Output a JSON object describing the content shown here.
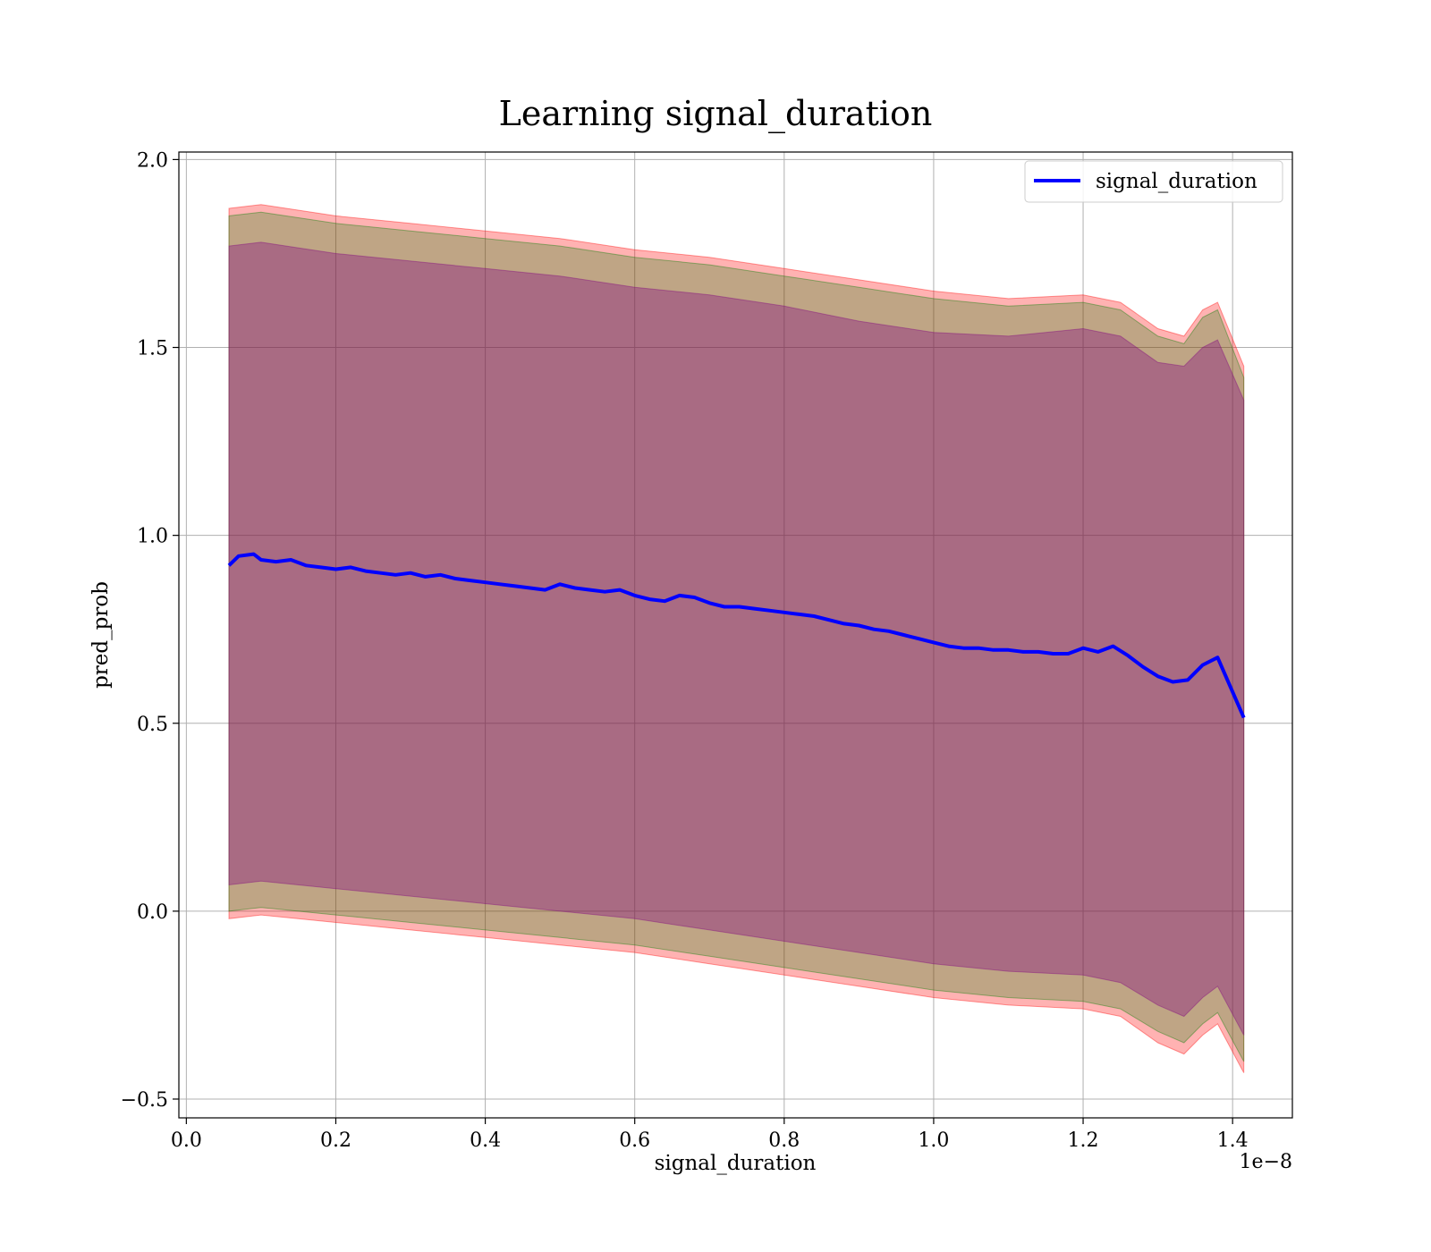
{
  "chart_data": {
    "type": "line",
    "title": "Learning signal_duration",
    "xlabel": "signal_duration",
    "ylabel": "pred_prob",
    "x_offset_text": "1e−8",
    "xlim": [
      -0.01,
      1.48
    ],
    "ylim": [
      -0.55,
      2.02
    ],
    "grid": true,
    "legend_position": "top-right",
    "x_ticks": [
      0.0,
      0.2,
      0.4,
      0.6,
      0.8,
      1.0,
      1.2,
      1.4
    ],
    "x_tick_labels": [
      "0.0",
      "0.2",
      "0.4",
      "0.6",
      "0.8",
      "1.0",
      "1.2",
      "1.4"
    ],
    "y_ticks": [
      -0.5,
      0.0,
      0.5,
      1.0,
      1.5,
      2.0
    ],
    "y_tick_labels": [
      "−0.5",
      "0.0",
      "0.5",
      "1.0",
      "1.5",
      "2.0"
    ],
    "series": [
      {
        "name": "signal_duration",
        "color": "#0000ff",
        "x": [
          0.057,
          0.07,
          0.09,
          0.1,
          0.12,
          0.14,
          0.16,
          0.18,
          0.2,
          0.22,
          0.24,
          0.26,
          0.28,
          0.3,
          0.32,
          0.34,
          0.36,
          0.38,
          0.4,
          0.42,
          0.44,
          0.46,
          0.48,
          0.5,
          0.52,
          0.54,
          0.56,
          0.58,
          0.6,
          0.62,
          0.64,
          0.66,
          0.68,
          0.7,
          0.72,
          0.74,
          0.76,
          0.78,
          0.8,
          0.82,
          0.84,
          0.86,
          0.88,
          0.9,
          0.92,
          0.94,
          0.96,
          0.98,
          1.0,
          1.02,
          1.04,
          1.06,
          1.08,
          1.1,
          1.12,
          1.14,
          1.16,
          1.18,
          1.2,
          1.22,
          1.24,
          1.26,
          1.28,
          1.3,
          1.32,
          1.34,
          1.36,
          1.38,
          1.415
        ],
        "y": [
          0.92,
          0.945,
          0.95,
          0.935,
          0.93,
          0.935,
          0.92,
          0.915,
          0.91,
          0.915,
          0.905,
          0.9,
          0.895,
          0.9,
          0.89,
          0.895,
          0.885,
          0.88,
          0.875,
          0.87,
          0.865,
          0.86,
          0.855,
          0.87,
          0.86,
          0.855,
          0.85,
          0.855,
          0.84,
          0.83,
          0.825,
          0.84,
          0.835,
          0.82,
          0.81,
          0.81,
          0.805,
          0.8,
          0.795,
          0.79,
          0.785,
          0.775,
          0.765,
          0.76,
          0.75,
          0.745,
          0.735,
          0.725,
          0.715,
          0.705,
          0.7,
          0.7,
          0.695,
          0.695,
          0.69,
          0.69,
          0.685,
          0.685,
          0.7,
          0.69,
          0.705,
          0.68,
          0.65,
          0.625,
          0.61,
          0.615,
          0.655,
          0.675,
          0.515
        ]
      }
    ],
    "bands": [
      {
        "color": "#ff0000",
        "opacity": 0.3,
        "x": [
          0.057,
          0.1,
          0.2,
          0.3,
          0.4,
          0.5,
          0.6,
          0.7,
          0.8,
          0.9,
          1.0,
          1.1,
          1.2,
          1.25,
          1.3,
          1.335,
          1.36,
          1.38,
          1.415
        ],
        "upper": [
          1.87,
          1.88,
          1.85,
          1.83,
          1.81,
          1.79,
          1.76,
          1.74,
          1.71,
          1.68,
          1.65,
          1.63,
          1.64,
          1.62,
          1.55,
          1.53,
          1.6,
          1.62,
          1.45
        ],
        "lower": [
          -0.02,
          -0.01,
          -0.03,
          -0.05,
          -0.07,
          -0.09,
          -0.11,
          -0.14,
          -0.17,
          -0.2,
          -0.23,
          -0.25,
          -0.26,
          -0.28,
          -0.35,
          -0.38,
          -0.33,
          -0.3,
          -0.43
        ]
      },
      {
        "color": "#008000",
        "opacity": 0.25,
        "x": [
          0.057,
          0.1,
          0.2,
          0.3,
          0.4,
          0.5,
          0.6,
          0.7,
          0.8,
          0.9,
          1.0,
          1.1,
          1.2,
          1.25,
          1.3,
          1.335,
          1.36,
          1.38,
          1.415
        ],
        "upper": [
          1.85,
          1.86,
          1.83,
          1.81,
          1.79,
          1.77,
          1.74,
          1.72,
          1.69,
          1.66,
          1.63,
          1.61,
          1.62,
          1.6,
          1.53,
          1.51,
          1.58,
          1.6,
          1.42
        ],
        "lower": [
          0.0,
          0.01,
          -0.01,
          -0.03,
          -0.05,
          -0.07,
          -0.09,
          -0.12,
          -0.15,
          -0.18,
          -0.21,
          -0.23,
          -0.24,
          -0.26,
          -0.32,
          -0.35,
          -0.3,
          -0.27,
          -0.4
        ]
      },
      {
        "color": "#800080",
        "opacity": 0.35,
        "x": [
          0.057,
          0.1,
          0.2,
          0.3,
          0.4,
          0.5,
          0.6,
          0.7,
          0.8,
          0.9,
          1.0,
          1.1,
          1.2,
          1.25,
          1.3,
          1.335,
          1.36,
          1.38,
          1.415
        ],
        "upper": [
          1.77,
          1.78,
          1.75,
          1.73,
          1.71,
          1.69,
          1.66,
          1.64,
          1.61,
          1.57,
          1.54,
          1.53,
          1.55,
          1.53,
          1.46,
          1.45,
          1.5,
          1.52,
          1.36
        ],
        "lower": [
          0.07,
          0.08,
          0.06,
          0.04,
          0.02,
          0.0,
          -0.02,
          -0.05,
          -0.08,
          -0.11,
          -0.14,
          -0.16,
          -0.17,
          -0.19,
          -0.25,
          -0.28,
          -0.23,
          -0.2,
          -0.33
        ]
      }
    ]
  }
}
